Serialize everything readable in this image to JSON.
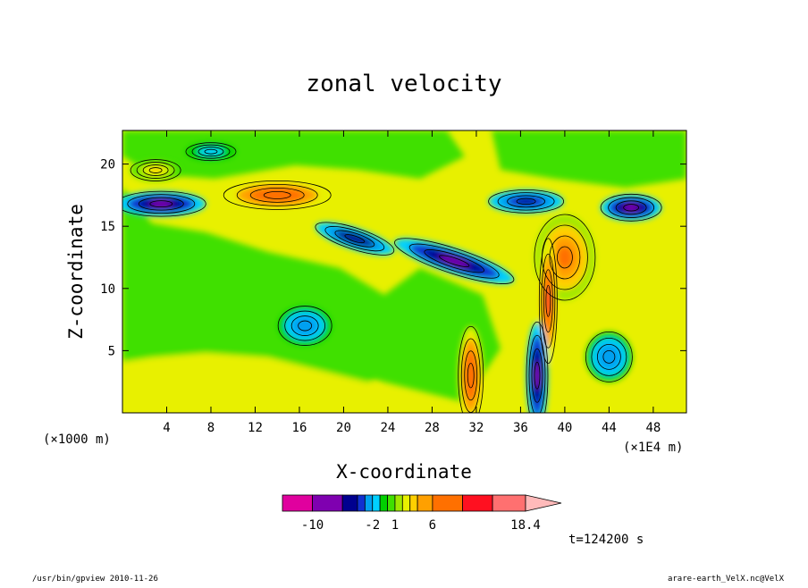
{
  "chart_data": {
    "type": "heatmap",
    "title": "zonal velocity",
    "xlabel": "X-coordinate",
    "ylabel": "Z-coordinate",
    "x_unit_note_left": "(×1000 m)",
    "x_unit_note_right": "(×1E4 m)",
    "x_ticks": [
      4,
      8,
      12,
      16,
      20,
      24,
      28,
      32,
      36,
      40,
      44,
      48
    ],
    "y_ticks": [
      5,
      10,
      15,
      20
    ],
    "xlim": [
      0,
      51
    ],
    "ylim": [
      0,
      22.7
    ],
    "colorbar": {
      "levels": [
        -14,
        -10,
        -6,
        -4,
        -3,
        -2,
        -1,
        0,
        1,
        2,
        3,
        4,
        6,
        10,
        14,
        18.4
      ],
      "tick_labels": [
        "-10",
        "-2",
        "1",
        "6",
        "18.4"
      ],
      "tick_values": [
        -10,
        -2,
        1,
        6,
        18.4
      ],
      "colors": [
        "#e0009e",
        "#7f00b0",
        "#00008f",
        "#1030d0",
        "#00a0f0",
        "#00d0ff",
        "#00d000",
        "#40e000",
        "#a0e800",
        "#e8f000",
        "#ffd000",
        "#ffa000",
        "#ff7000",
        "#ff1020",
        "#ff7070",
        "#ffbaba"
      ]
    },
    "annotation": "t=124200 s",
    "features": [
      {
        "x": 14,
        "z": 17.5,
        "value": 8
      },
      {
        "x": 3.5,
        "z": 16.8,
        "value": -8
      },
      {
        "x": 46,
        "z": 16.5,
        "value": -7
      },
      {
        "x": 30,
        "z": 12.2,
        "value": -7
      },
      {
        "x": 21,
        "z": 14,
        "value": -6
      },
      {
        "x": 40,
        "z": 12.5,
        "value": 7
      },
      {
        "x": 36.5,
        "z": 17,
        "value": -5
      },
      {
        "x": 38.5,
        "z": 9,
        "value": 10
      },
      {
        "x": 37.5,
        "z": 3,
        "value": -7
      },
      {
        "x": 31.5,
        "z": 3,
        "value": 9
      },
      {
        "x": 16.5,
        "z": 7,
        "value": -3
      },
      {
        "x": 44,
        "z": 4.5,
        "value": -3
      },
      {
        "x": 8,
        "z": 21,
        "value": -2
      },
      {
        "x": 3,
        "z": 19.5,
        "value": 3
      }
    ]
  },
  "footer": {
    "left": "/usr/bin/gpview  2010-11-26",
    "right": "arare-earth_VelX.nc@VelX"
  }
}
